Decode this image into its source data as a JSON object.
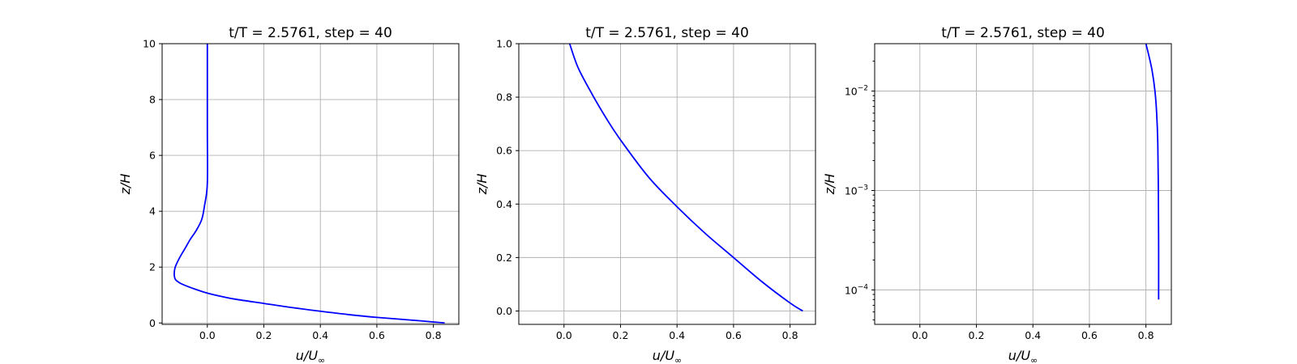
{
  "chart_data": [
    {
      "type": "line",
      "title": "t/T = 2.5761, step = 40",
      "xlabel": "u/U∞",
      "ylabel": "z/H",
      "xlim": [
        -0.16,
        0.89
      ],
      "ylim": [
        -0.05,
        10
      ],
      "yscale": "linear",
      "xticks": [
        0.0,
        0.2,
        0.4,
        0.6,
        0.8
      ],
      "xtick_labels": [
        "0.0",
        "0.2",
        "0.4",
        "0.6",
        "0.8"
      ],
      "yticks": [
        0,
        2,
        4,
        6,
        8,
        10
      ],
      "ytick_labels": [
        "0",
        "2",
        "4",
        "6",
        "8",
        "10"
      ],
      "grid": true,
      "color": "#0000ff",
      "series": [
        {
          "x": [
            0.84,
            0.75,
            0.6,
            0.5,
            0.4,
            0.3,
            0.2,
            0.1,
            0.05,
            0.0,
            -0.04,
            -0.08,
            -0.1,
            -0.115,
            -0.115,
            -0.1,
            -0.08,
            -0.06,
            -0.04,
            -0.02,
            -0.01,
            0.0,
            0.0,
            0.0
          ],
          "y": [
            0.0,
            0.08,
            0.2,
            0.3,
            0.42,
            0.55,
            0.7,
            0.85,
            0.95,
            1.07,
            1.2,
            1.35,
            1.45,
            1.6,
            1.95,
            2.3,
            2.65,
            3.0,
            3.3,
            3.7,
            4.2,
            5.0,
            7.0,
            10.0
          ]
        }
      ]
    },
    {
      "type": "line",
      "title": "t/T = 2.5761, step = 40",
      "xlabel": "u/U∞",
      "ylabel": "z/H",
      "xlim": [
        -0.16,
        0.89
      ],
      "ylim": [
        -0.05,
        1.0
      ],
      "yscale": "linear",
      "xticks": [
        0.0,
        0.2,
        0.4,
        0.6,
        0.8
      ],
      "xtick_labels": [
        "0.0",
        "0.2",
        "0.4",
        "0.6",
        "0.8"
      ],
      "yticks": [
        0.0,
        0.2,
        0.4,
        0.6,
        0.8,
        1.0
      ],
      "ytick_labels": [
        "0.0",
        "0.2",
        "0.4",
        "0.6",
        "0.8",
        "1.0"
      ],
      "grid": true,
      "color": "#0000ff",
      "series": [
        {
          "x": [
            0.845,
            0.8,
            0.7,
            0.6,
            0.5,
            0.4,
            0.3,
            0.2,
            0.15,
            0.1,
            0.05,
            0.02
          ],
          "y": [
            0.0,
            0.03,
            0.11,
            0.2,
            0.29,
            0.39,
            0.5,
            0.64,
            0.72,
            0.81,
            0.91,
            1.0
          ]
        }
      ]
    },
    {
      "type": "line",
      "title": "t/T = 2.5761, step = 40",
      "xlabel": "u/U∞",
      "ylabel": "z/H",
      "xlim": [
        -0.16,
        0.89
      ],
      "ylim": [
        4.5e-05,
        0.03
      ],
      "yscale": "log",
      "xticks": [
        0.0,
        0.2,
        0.4,
        0.6,
        0.8
      ],
      "xtick_labels": [
        "0.0",
        "0.2",
        "0.4",
        "0.6",
        "0.8"
      ],
      "yticks": [
        0.0001,
        0.001,
        0.01
      ],
      "ytick_base": "10",
      "ytick_exponents": [
        "−4",
        "−3",
        "−2"
      ],
      "grid": true,
      "color": "#0000ff",
      "series": [
        {
          "x": [
            0.845,
            0.845,
            0.844,
            0.842,
            0.838,
            0.832,
            0.822,
            0.81,
            0.8
          ],
          "y": [
            8e-05,
            0.0003,
            0.001,
            0.003,
            0.006,
            0.01,
            0.016,
            0.023,
            0.03
          ]
        }
      ]
    }
  ]
}
